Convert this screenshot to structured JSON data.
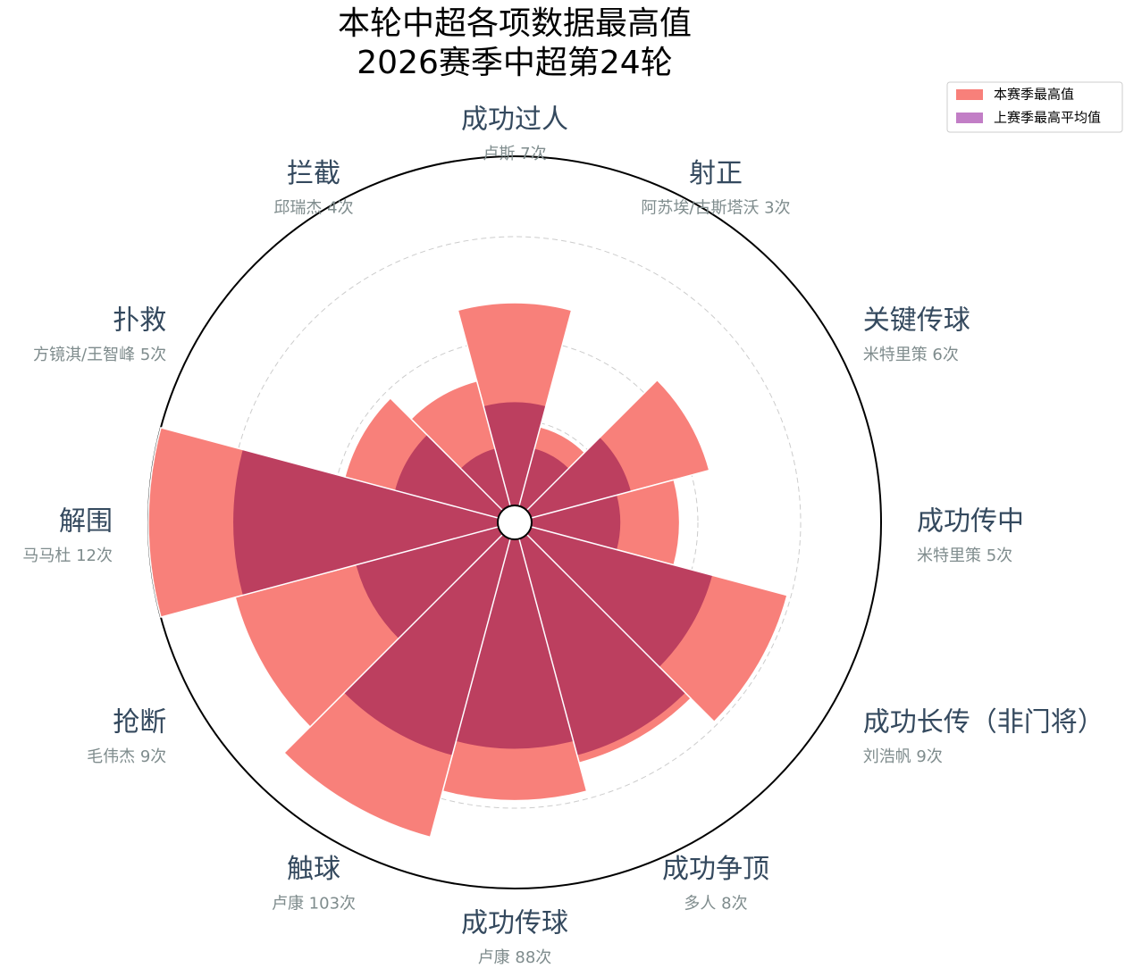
{
  "chart_data": {
    "type": "polar-area",
    "title": "本轮中超各项数据最高值",
    "subtitle": "2026赛季中超第24轮",
    "categories": [
      "成功过人",
      "射正",
      "关键传球",
      "成功传中",
      "成功长传（非门将）",
      "成功争顶",
      "成功传球",
      "触球",
      "抢断",
      "解围",
      "扑救",
      "拦截"
    ],
    "annotations": [
      "卢斯 7次",
      "阿苏埃/古斯塔沃 3次",
      "米特里策 6次",
      "米特里策 5次",
      "刘浩帆 9次",
      "多人 8次",
      "卢康 88次",
      "卢康 103次",
      "毛伟杰 9次",
      "马马杜 12次",
      "方镜淇/王智峰 5次",
      "邱瑞杰 4次"
    ],
    "series": [
      {
        "name": "本赛季最高值",
        "color": "#f8807a",
        "values": [
          60,
          27,
          55,
          45,
          77,
          68,
          76,
          89,
          79,
          100,
          48,
          40
        ]
      },
      {
        "name": "上赛季最高平均值",
        "color": "#c27ec6",
        "values": [
          33,
          21,
          33,
          29,
          56,
          66,
          62,
          66,
          45,
          77,
          34,
          21
        ]
      }
    ],
    "ylim": [
      0,
      100
    ],
    "legend": "upper right"
  }
}
